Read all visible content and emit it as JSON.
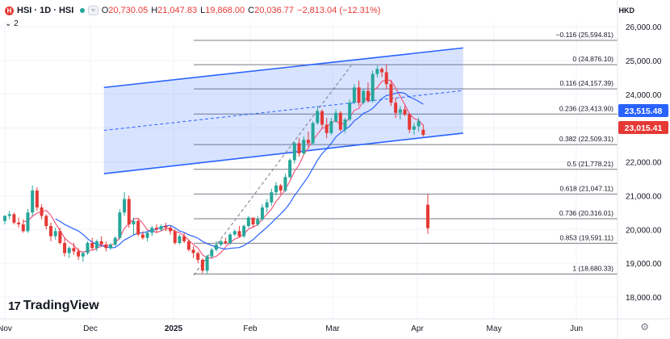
{
  "header": {
    "symbol": "HSI · 1D · HSI",
    "open_label": "O",
    "open": "20,730.05",
    "high_label": "H",
    "high": "21,047.83",
    "low_label": "L",
    "low": "19,868.00",
    "close_label": "C",
    "close": "20,036.77",
    "change": "−2,813.04 (−12.31%)",
    "indicator_count": "2",
    "currency": "HKD",
    "brand": "TradingView"
  },
  "colors": {
    "up": "#26a69a",
    "down": "#e53935",
    "ma_fast": "#f2577f",
    "ma_slow": "#2962ff",
    "channel": "#2962ff"
  },
  "chart_data": {
    "type": "candlestick",
    "y_range": [
      17500,
      26600
    ],
    "y_ticks": [
      18000,
      19000,
      20000,
      21000,
      22000,
      23000,
      24000,
      25000,
      26000
    ],
    "y_tick_labels": [
      "18,000.00",
      "19,000.00",
      "20,000.00",
      "21,000.00",
      "22,000.00",
      "23,000.00",
      "24,000.00",
      "25,000.00",
      "26,000.00"
    ],
    "x_labels": [
      "Nov",
      "Dec",
      "2025",
      "Feb",
      "Mar",
      "Apr",
      "May",
      "Jun"
    ],
    "price_tags": [
      {
        "value": 23515.48,
        "label": "23,515.48",
        "color": "#2962ff"
      },
      {
        "value": 23015.41,
        "label": "23,015.41",
        "color": "#e53935"
      }
    ],
    "fibonacci": [
      {
        "ratio": "−0.116",
        "value": 25594.81,
        "label": "−0.116 (25,594.81)"
      },
      {
        "ratio": "0",
        "value": 24876.1,
        "label": "0 (24,876.10)"
      },
      {
        "ratio": "0.116",
        "value": 24157.39,
        "label": "0.116 (24,157.39)"
      },
      {
        "ratio": "0.236",
        "value": 23413.9,
        "label": "0.236 (23,413.90)"
      },
      {
        "ratio": "0.382",
        "value": 22509.31,
        "label": "0.382 (22,509.31)"
      },
      {
        "ratio": "0.5",
        "value": 21778.21,
        "label": "0.5 (21,778.21)"
      },
      {
        "ratio": "0.618",
        "value": 21047.11,
        "label": "0.618 (21,047.11)"
      },
      {
        "ratio": "0.736",
        "value": 20316.01,
        "label": "0.736 (20,316.01)"
      },
      {
        "ratio": "0.853",
        "value": 19591.11,
        "label": "0.853 (19,591.11)"
      },
      {
        "ratio": "1",
        "value": 18680.33,
        "label": "1 (18,680.33)"
      }
    ],
    "candles": [
      [
        20250,
        20420,
        20150,
        20400
      ],
      [
        20400,
        20550,
        20300,
        20450
      ],
      [
        20450,
        20500,
        20150,
        20200
      ],
      [
        20200,
        20350,
        20050,
        20150
      ],
      [
        20150,
        20300,
        19900,
        19950
      ],
      [
        19950,
        20600,
        19900,
        20500
      ],
      [
        20500,
        21300,
        20400,
        21150
      ],
      [
        21150,
        21250,
        20550,
        20650
      ],
      [
        20650,
        20750,
        20300,
        20400
      ],
      [
        20400,
        20450,
        20000,
        20100
      ],
      [
        20100,
        20200,
        19650,
        19800
      ],
      [
        19800,
        20050,
        19700,
        19950
      ],
      [
        19950,
        20050,
        19550,
        19600
      ],
      [
        19600,
        19750,
        19200,
        19300
      ],
      [
        19300,
        19500,
        19150,
        19450
      ],
      [
        19450,
        19600,
        19250,
        19350
      ],
      [
        19350,
        19450,
        19100,
        19200
      ],
      [
        19200,
        19350,
        19050,
        19300
      ],
      [
        19300,
        19650,
        19250,
        19600
      ],
      [
        19600,
        19750,
        19400,
        19450
      ],
      [
        19450,
        19700,
        19350,
        19650
      ],
      [
        19650,
        19800,
        19500,
        19550
      ],
      [
        19550,
        19650,
        19350,
        19450
      ],
      [
        19450,
        19600,
        19400,
        19550
      ],
      [
        19550,
        19800,
        19500,
        19750
      ],
      [
        19750,
        20600,
        19700,
        20500
      ],
      [
        20500,
        21100,
        20400,
        20900
      ],
      [
        20900,
        21000,
        20050,
        20150
      ],
      [
        20150,
        20350,
        19850,
        20250
      ],
      [
        20250,
        20300,
        19800,
        19850
      ],
      [
        19850,
        19950,
        19700,
        19750
      ],
      [
        19750,
        19950,
        19650,
        19900
      ],
      [
        19900,
        20100,
        19800,
        20050
      ],
      [
        20050,
        20150,
        19900,
        20000
      ],
      [
        20000,
        20150,
        19950,
        20100
      ],
      [
        20100,
        20200,
        19950,
        20050
      ],
      [
        20050,
        20100,
        19850,
        19950
      ],
      [
        19950,
        20000,
        19550,
        19600
      ],
      [
        19600,
        19850,
        19550,
        19800
      ],
      [
        19800,
        19900,
        19600,
        19650
      ],
      [
        19650,
        19700,
        19350,
        19400
      ],
      [
        19400,
        19500,
        19150,
        19300
      ],
      [
        19300,
        19350,
        19000,
        19100
      ],
      [
        19100,
        19150,
        18700,
        18780
      ],
      [
        18780,
        19250,
        18700,
        19200
      ],
      [
        19200,
        19450,
        19150,
        19400
      ],
      [
        19400,
        19650,
        19350,
        19550
      ],
      [
        19550,
        19700,
        19500,
        19650
      ],
      [
        19650,
        19750,
        19550,
        19600
      ],
      [
        19600,
        19900,
        19550,
        19850
      ],
      [
        19850,
        20000,
        19800,
        19950
      ],
      [
        19950,
        20100,
        19750,
        19800
      ],
      [
        19800,
        20150,
        19750,
        20100
      ],
      [
        20100,
        20400,
        20050,
        20350
      ],
      [
        20350,
        20350,
        20050,
        20150
      ],
      [
        20150,
        20400,
        20100,
        20300
      ],
      [
        20300,
        20750,
        20250,
        20650
      ],
      [
        20650,
        20900,
        20500,
        20800
      ],
      [
        20800,
        21200,
        20700,
        21100
      ],
      [
        21100,
        21400,
        21000,
        21300
      ],
      [
        21300,
        21350,
        21050,
        21150
      ],
      [
        21150,
        21650,
        21100,
        21550
      ],
      [
        21550,
        22100,
        21500,
        22050
      ],
      [
        22050,
        22600,
        21950,
        22550
      ],
      [
        22550,
        22700,
        22150,
        22250
      ],
      [
        22250,
        22750,
        22200,
        22650
      ],
      [
        22650,
        22900,
        22450,
        22550
      ],
      [
        22550,
        23200,
        22500,
        23150
      ],
      [
        23150,
        23650,
        23100,
        23500
      ],
      [
        23500,
        23550,
        23000,
        23100
      ],
      [
        23100,
        23300,
        22700,
        22850
      ],
      [
        22850,
        23300,
        22800,
        23200
      ],
      [
        23200,
        23550,
        23150,
        23450
      ],
      [
        23450,
        23500,
        22900,
        22950
      ],
      [
        22950,
        23300,
        22850,
        23250
      ],
      [
        23250,
        23850,
        23200,
        23750
      ],
      [
        23750,
        24300,
        23700,
        24200
      ],
      [
        24200,
        24400,
        23650,
        23750
      ],
      [
        23750,
        24150,
        23700,
        24100
      ],
      [
        24100,
        24350,
        23750,
        23800
      ],
      [
        23800,
        24700,
        23750,
        24600
      ],
      [
        24600,
        24850,
        24500,
        24750
      ],
      [
        24750,
        24800,
        24500,
        24650
      ],
      [
        24650,
        24876,
        24150,
        24300
      ],
      [
        24300,
        24400,
        23650,
        23750
      ],
      [
        23750,
        23900,
        23300,
        23450
      ],
      [
        23450,
        23650,
        23250,
        23550
      ],
      [
        23550,
        23650,
        23350,
        23400
      ],
      [
        23400,
        23450,
        22850,
        22950
      ],
      [
        22950,
        23150,
        22800,
        23050
      ],
      [
        23050,
        23300,
        22900,
        23200
      ],
      [
        22950,
        23100,
        22750,
        22800
      ],
      [
        20730.05,
        21047.83,
        19868.0,
        20036.77
      ]
    ],
    "channel_upper": [
      [
        20,
        24200
      ],
      [
        42,
        25370
      ]
    ],
    "channel_lower": [
      [
        20,
        21650
      ],
      [
        42,
        22850
      ]
    ],
    "channel_mid": [
      [
        20,
        22930
      ],
      [
        42,
        24110
      ]
    ],
    "trend_dashed": [
      [
        13,
        18650
      ],
      [
        20,
        24850
      ]
    ]
  }
}
